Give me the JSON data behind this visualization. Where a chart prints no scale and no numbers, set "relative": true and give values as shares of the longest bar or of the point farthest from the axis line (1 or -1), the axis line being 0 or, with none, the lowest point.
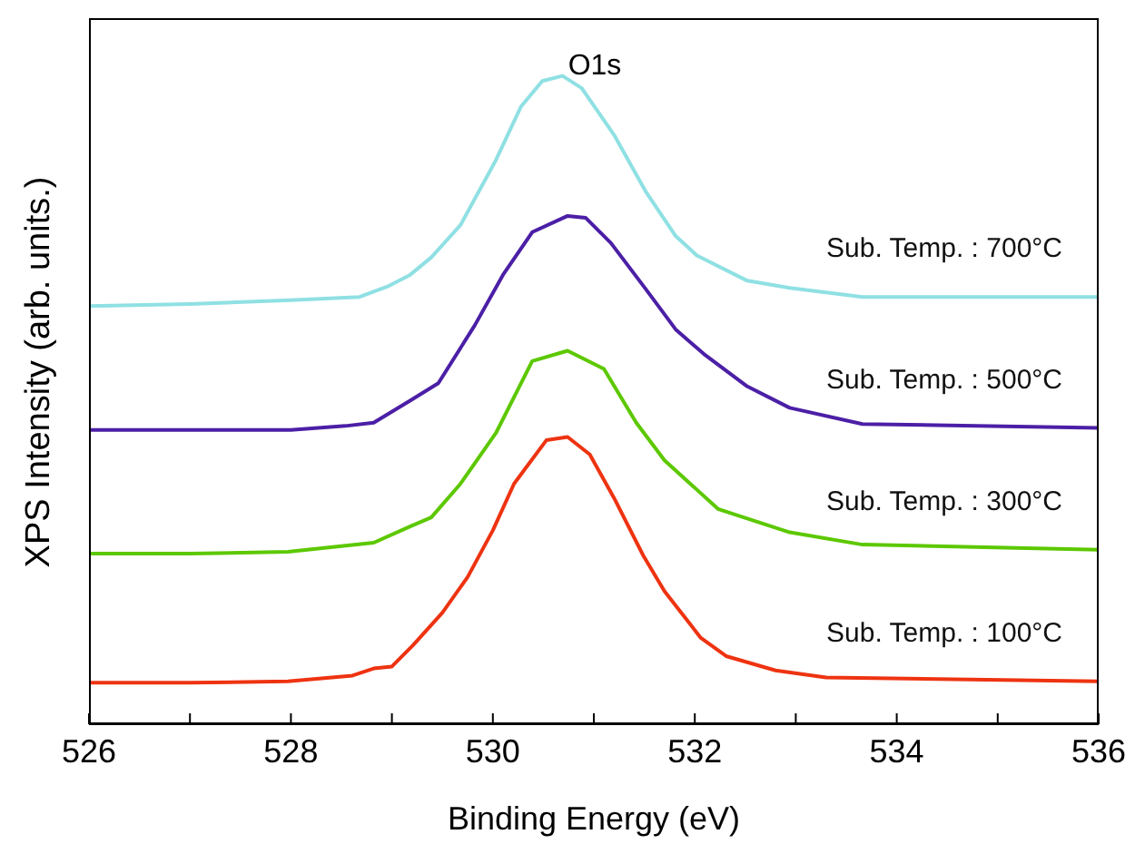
{
  "chart_data": {
    "type": "line",
    "title": "O1s",
    "xlabel": "Binding Energy (eV)",
    "ylabel": "XPS Intensity (arb. units.)",
    "relative": true,
    "xlim": [
      526,
      536
    ],
    "xticks": [
      526,
      {
        "value": 527,
        "label": null
      },
      528,
      {
        "value": 529,
        "label": null
      },
      530,
      {
        "value": 531,
        "label": null
      },
      532,
      {
        "value": 533,
        "label": null
      },
      534,
      {
        "value": 535,
        "label": null
      },
      536
    ],
    "grid": false,
    "legend": false,
    "marker": "none",
    "line_style": "solid",
    "series": [
      {
        "name": "Sub. Temp. : 700°C",
        "color": "#8fe0e3",
        "x": [
          526,
          527,
          528,
          528.68,
          528.97,
          529.18,
          529.39,
          529.68,
          530.03,
          530.28,
          530.49,
          530.69,
          530.88,
          531.2,
          531.52,
          531.81,
          532.02,
          532.52,
          532.94,
          533.66,
          536
        ],
        "values": [
          0.645,
          0.648,
          0.654,
          0.659,
          0.676,
          0.693,
          0.72,
          0.77,
          0.87,
          0.953,
          0.992,
          1,
          0.981,
          0.909,
          0.82,
          0.753,
          0.723,
          0.684,
          0.673,
          0.659,
          0.659
        ]
      },
      {
        "name": "Sub. Temp. : 500°C",
        "color": "#4b1fa6",
        "x": [
          526,
          527,
          528,
          528.54,
          528.82,
          529.18,
          529.46,
          529.82,
          530.1,
          530.39,
          530.74,
          530.92,
          531.17,
          531.52,
          531.81,
          532.09,
          532.52,
          532.94,
          533.66,
          536
        ],
        "values": [
          0.454,
          0.454,
          0.454,
          0.46,
          0.465,
          0.499,
          0.526,
          0.615,
          0.693,
          0.759,
          0.784,
          0.781,
          0.742,
          0.67,
          0.609,
          0.571,
          0.521,
          0.488,
          0.463,
          0.457
        ]
      },
      {
        "name": "Sub. Temp. : 300°C",
        "color": "#5cc800",
        "x": [
          526,
          527,
          527.97,
          528.82,
          529.18,
          529.39,
          529.68,
          530.03,
          530.39,
          530.74,
          531.1,
          531.42,
          531.7,
          532.23,
          532.94,
          533.66,
          536
        ],
        "values": [
          0.263,
          0.263,
          0.266,
          0.28,
          0.305,
          0.319,
          0.371,
          0.449,
          0.56,
          0.576,
          0.548,
          0.465,
          0.407,
          0.332,
          0.296,
          0.277,
          0.269
        ]
      },
      {
        "name": "Sub. Temp. : 100°C",
        "color": "#ee3311",
        "x": [
          526,
          527,
          527.97,
          528.61,
          528.82,
          529,
          529.21,
          529.5,
          529.75,
          530,
          530.21,
          530.53,
          530.74,
          530.96,
          531.2,
          531.49,
          531.7,
          532.06,
          532.31,
          532.8,
          533.3,
          536
        ],
        "values": [
          0.064,
          0.064,
          0.066,
          0.075,
          0.086,
          0.089,
          0.122,
          0.172,
          0.227,
          0.299,
          0.371,
          0.438,
          0.443,
          0.416,
          0.349,
          0.26,
          0.205,
          0.133,
          0.105,
          0.083,
          0.072,
          0.066
        ]
      }
    ]
  }
}
